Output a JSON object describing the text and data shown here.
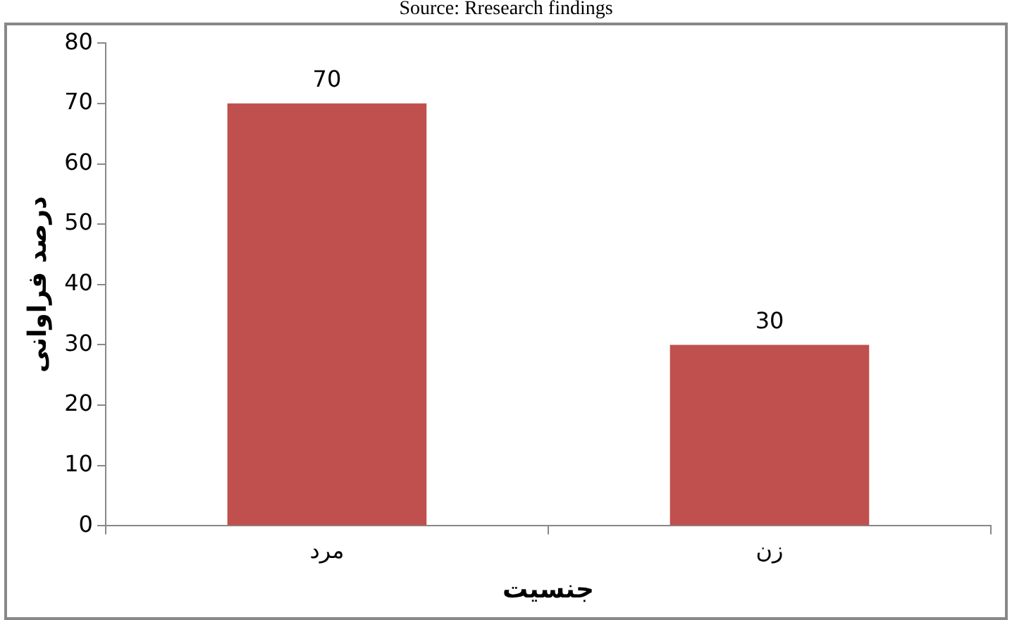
{
  "chart_data": {
    "type": "bar",
    "annotations": [
      "Source: Rresearch findings"
    ],
    "xlabel": "جنسیت",
    "ylabel": "درصد فراوانی",
    "categories": [
      "مرد",
      "زن"
    ],
    "values": [
      70,
      30
    ],
    "color": "#c0504d",
    "ylim": [
      0,
      80
    ],
    "yticks": [
      0,
      10,
      20,
      30,
      40,
      50,
      60,
      70,
      80
    ],
    "grid": false,
    "legend": false,
    "data_labels": true
  }
}
